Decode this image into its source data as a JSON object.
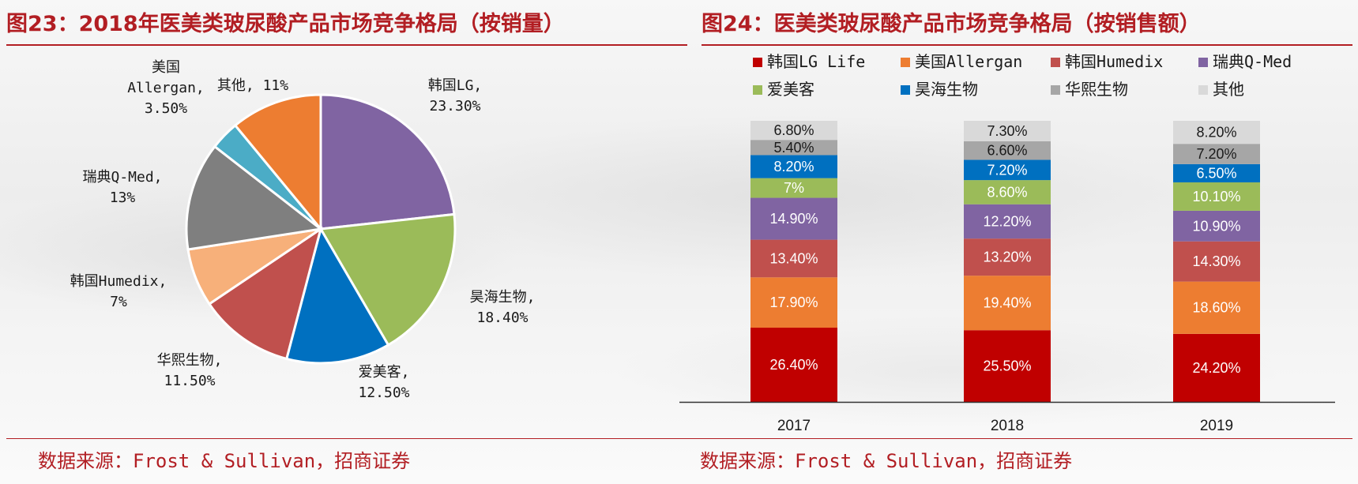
{
  "left_title": "图23：2018年医美类玻尿酸产品市场竞争格局（按销量）",
  "right_title": "图24：医美类玻尿酸产品市场竞争格局（按销售额）",
  "left_source": "数据来源：Frost & Sullivan，招商证券",
  "right_source": "数据来源：Frost & Sullivan，招商证券",
  "chart_data": [
    {
      "type": "pie",
      "title": "图23：2018年医美类玻尿酸产品市场竞争格局（按销量）",
      "unit": "%",
      "slices": [
        {
          "label_lines": [
            "韩国LG,",
            "23.30%"
          ],
          "value": 23.3,
          "color": "#8064a2"
        },
        {
          "label_lines": [
            "昊海生物,",
            "18.40%"
          ],
          "value": 18.4,
          "color": "#9bbb59"
        },
        {
          "label_lines": [
            "爱美客,",
            "12.50%"
          ],
          "value": 12.5,
          "color": "#0070c0"
        },
        {
          "label_lines": [
            "华熙生物,",
            "11.50%"
          ],
          "value": 11.5,
          "color": "#c0504d"
        },
        {
          "label_lines": [
            "韩国Humedix,",
            "7%"
          ],
          "value": 7.0,
          "color": "#f7b07a"
        },
        {
          "label_lines": [
            "瑞典Q-Med,",
            "13%"
          ],
          "value": 13.0,
          "color": "#7f7f7f"
        },
        {
          "label_lines": [
            "美国",
            "Allergan,",
            "3.50%"
          ],
          "value": 3.5,
          "color": "#4bacc6"
        },
        {
          "label_lines": [
            "其他, 11%"
          ],
          "value": 11.0,
          "color": "#ed7d31"
        }
      ]
    },
    {
      "type": "bar",
      "stacked": true,
      "title": "图24：医美类玻尿酸产品市场竞争格局（按销售额）",
      "categories": [
        "2017",
        "2018",
        "2019"
      ],
      "unit": "%",
      "legend_position": "top",
      "series": [
        {
          "name": "韩国LG Life",
          "color": "#c00000",
          "values": [
            26.4,
            25.5,
            24.2
          ],
          "labels": [
            "26.40%",
            "25.50%",
            "24.20%"
          ]
        },
        {
          "name": "美国Allergan",
          "color": "#ed7d31",
          "values": [
            17.9,
            19.4,
            18.6
          ],
          "labels": [
            "17.90%",
            "19.40%",
            "18.60%"
          ]
        },
        {
          "name": "韩国Humedix",
          "color": "#c0504d",
          "values": [
            13.4,
            13.2,
            14.3
          ],
          "labels": [
            "13.40%",
            "13.20%",
            "14.30%"
          ]
        },
        {
          "name": "瑞典Q-Med",
          "color": "#8064a2",
          "values": [
            14.9,
            12.2,
            10.9
          ],
          "labels": [
            "14.90%",
            "12.20%",
            "10.90%"
          ]
        },
        {
          "name": "爱美客",
          "color": "#9bbb59",
          "values": [
            7.0,
            8.6,
            10.1
          ],
          "labels": [
            "7%",
            "8.60%",
            "10.10%"
          ]
        },
        {
          "name": "昊海生物",
          "color": "#0070c0",
          "values": [
            8.2,
            7.2,
            6.5
          ],
          "labels": [
            "8.20%",
            "7.20%",
            "6.50%"
          ]
        },
        {
          "name": "华熙生物",
          "color": "#a6a6a6",
          "values": [
            5.4,
            6.6,
            7.2
          ],
          "labels": [
            "5.40%",
            "6.60%",
            "7.20%"
          ]
        },
        {
          "name": "其他",
          "color": "#d9d9d9",
          "values": [
            6.8,
            7.3,
            8.2
          ],
          "labels": [
            "6.80%",
            "7.30%",
            "8.20%"
          ]
        }
      ]
    }
  ]
}
